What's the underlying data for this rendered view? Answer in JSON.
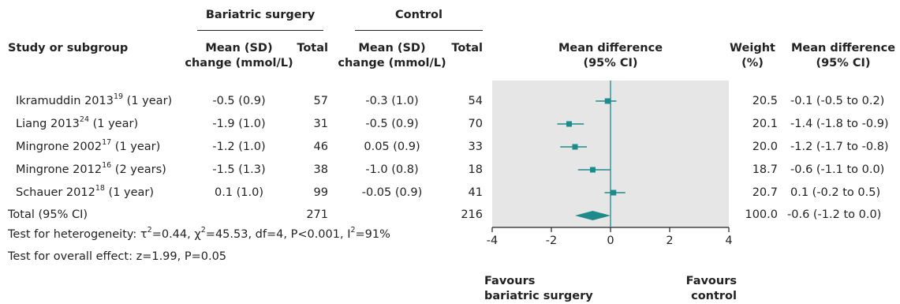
{
  "headers": {
    "group_surgery": "Bariatric surgery",
    "group_control": "Control",
    "study": "Study or subgroup",
    "mean_sd_l1": "Mean (SD)",
    "mean_sd_l2": "change (mmol/L)",
    "total": "Total",
    "plot_l1": "Mean difference",
    "plot_l2": "(95% CI)",
    "weight_l1": "Weight",
    "weight_l2": "(%)",
    "md_l1": "Mean difference",
    "md_l2": "(95% CI)"
  },
  "rows": [
    {
      "study": "Ikramuddin 2013",
      "ref": "19",
      "period": " (1 year)",
      "s_mean": "-0.5 (0.9)",
      "s_total": "57",
      "c_mean": "-0.3 (1.0)",
      "c_total": "54",
      "weight": "20.5",
      "md": "-0.1 (-0.5 to 0.2)"
    },
    {
      "study": "Liang 2013",
      "ref": "24",
      "period": " (1 year)",
      "s_mean": "-1.9 (1.0)",
      "s_total": "31",
      "c_mean": "-0.5 (0.9)",
      "c_total": "70",
      "weight": "20.1",
      "md": "-1.4 (-1.8 to -0.9)"
    },
    {
      "study": "Mingrone 2002",
      "ref": "17",
      "period": " (1 year)",
      "s_mean": "-1.2 (1.0)",
      "s_total": "46",
      "c_mean": "0.05 (0.9)",
      "c_total": "33",
      "weight": "20.0",
      "md": "-1.2 (-1.7 to -0.8)"
    },
    {
      "study": "Mingrone 2012",
      "ref": "16",
      "period": " (2 years)",
      "s_mean": "-1.5 (1.3)",
      "s_total": "38",
      "c_mean": "-1.0 (0.8)",
      "c_total": "18",
      "weight": "18.7",
      "md": "-0.6 (-1.1 to 0.0)"
    },
    {
      "study": "Schauer 2012",
      "ref": "18",
      "period": " (1 year)",
      "s_mean": "0.1 (1.0)",
      "s_total": "99",
      "c_mean": "-0.05 (0.9)",
      "c_total": "41",
      "weight": "20.7",
      "md": "0.1 (-0.2 to 0.5)"
    }
  ],
  "total_row": {
    "label": "Total (95% CI)",
    "s_total": "271",
    "c_total": "216",
    "weight": "100.0",
    "md": "-0.6 (-1.2 to 0.0)"
  },
  "heterogeneity": {
    "prefix": "Test for heterogeneity: ",
    "tau": "τ",
    "tau_val": "=0.44, ",
    "chi": "χ",
    "chi_val": "=45.53, df=4, P<0.001, I",
    "i2_val": "=91%",
    "sup2": "2"
  },
  "overall_effect": "Test for overall effect: z=1.99, P=0.05",
  "favours": {
    "left_l1": "Favours",
    "left_l2": "bariatric surgery",
    "right_l1": "Favours",
    "right_l2": "control"
  },
  "colors": {
    "marker": "#1e8a89",
    "plot_bg": "#e6e6e6",
    "zero_line": "#1e8a89"
  },
  "chart_data": {
    "type": "forest",
    "xlim": [
      -4,
      4
    ],
    "ticks": [
      -4,
      -2,
      0,
      2,
      4
    ],
    "studies": [
      {
        "name": "Ikramuddin 2013 (1 year)",
        "estimate": -0.1,
        "lower": -0.5,
        "upper": 0.2,
        "weight": 20.5
      },
      {
        "name": "Liang 2013 (1 year)",
        "estimate": -1.4,
        "lower": -1.8,
        "upper": -0.9,
        "weight": 20.1
      },
      {
        "name": "Mingrone 2002 (1 year)",
        "estimate": -1.2,
        "lower": -1.7,
        "upper": -0.8,
        "weight": 20.0
      },
      {
        "name": "Mingrone 2012 (2 years)",
        "estimate": -0.6,
        "lower": -1.1,
        "upper": 0.0,
        "weight": 18.7
      },
      {
        "name": "Schauer 2012 (1 year)",
        "estimate": 0.1,
        "lower": -0.2,
        "upper": 0.5,
        "weight": 20.7
      }
    ],
    "pooled": {
      "name": "Total (95% CI)",
      "estimate": -0.6,
      "lower": -1.2,
      "upper": 0.0,
      "weight": 100.0
    }
  }
}
